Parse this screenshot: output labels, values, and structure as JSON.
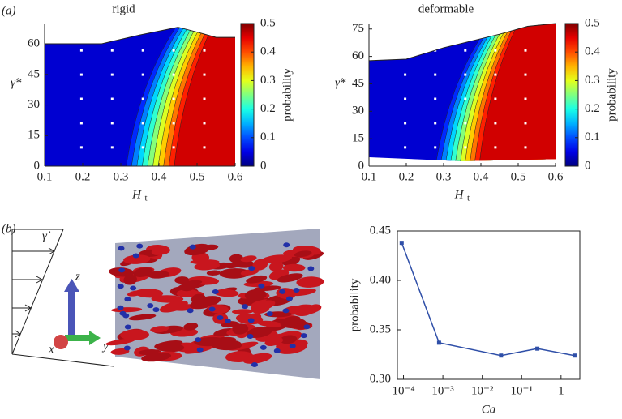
{
  "panel_labels": [
    "(a)",
    "(b)"
  ],
  "schematic": {
    "shear_rate": "γ̇",
    "axes": [
      "z",
      "y",
      "x"
    ]
  },
  "chart_data": [
    {
      "type": "contour",
      "title": "rigid",
      "xlabel": "H",
      "xlabel_subscript": "t",
      "ylabel": "γ̇*",
      "xlim": [
        0.1,
        0.6
      ],
      "xticks": [
        0.1,
        0.2,
        0.3,
        0.4,
        0.5,
        0.6
      ],
      "ylim": [
        0,
        70
      ],
      "yticks": [
        0,
        15,
        30,
        45,
        60
      ],
      "colormap": "jet",
      "colorbar": {
        "label": "probability",
        "lim": [
          0,
          0.5
        ],
        "ticks": [
          0,
          0.1,
          0.2,
          0.3,
          0.4,
          0.5
        ]
      }
    },
    {
      "type": "contour",
      "title": "deformable",
      "xlabel": "H",
      "xlabel_subscript": "t",
      "ylabel": "γ̇*",
      "xlim": [
        0.1,
        0.6
      ],
      "xticks": [
        0.1,
        0.2,
        0.3,
        0.4,
        0.5,
        0.6
      ],
      "ylim": [
        0,
        78
      ],
      "yticks": [
        0,
        15,
        30,
        45,
        60,
        75
      ],
      "colormap": "jet",
      "colorbar": {
        "label": "probability",
        "lim": [
          0,
          0.5
        ],
        "ticks": [
          0,
          0.1,
          0.2,
          0.3,
          0.4,
          0.5
        ]
      }
    },
    {
      "type": "line",
      "xlabel": "Ca",
      "ylabel": "probability",
      "xscale": "log",
      "xlim": [
        7e-05,
        3
      ],
      "xticks": [
        {
          "value": 0.0001,
          "label": "10⁻⁴"
        },
        {
          "value": 0.001,
          "label": "10⁻³"
        },
        {
          "value": 0.01,
          "label": "10⁻²"
        },
        {
          "value": 0.1,
          "label": "10⁻¹"
        },
        1
      ],
      "ylim": [
        0.3,
        0.45
      ],
      "yticks": [
        {
          "value": 0.3,
          "label": "0.30"
        },
        0.35,
        {
          "value": 0.4,
          "label": "0.40"
        },
        0.45
      ],
      "x": [
        9e-05,
        0.0008,
        0.03,
        0.25,
        2.2
      ],
      "values": [
        0.438,
        0.337,
        0.324,
        0.331,
        0.324
      ],
      "color": "#2f4fa8"
    }
  ]
}
